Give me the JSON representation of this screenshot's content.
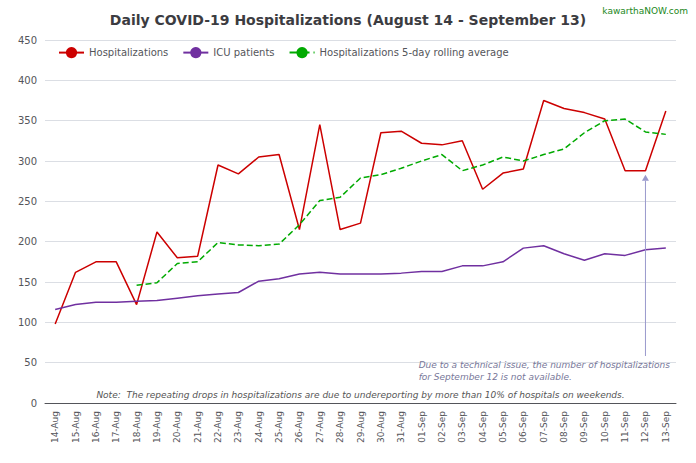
{
  "chart_data": {
    "type": "line",
    "title": "Daily COVID-19 Hospitalizations (August 14 - September 13)",
    "categories": [
      "14-Aug",
      "15-Aug",
      "16-Aug",
      "17-Aug",
      "18-Aug",
      "19-Aug",
      "20-Aug",
      "21-Aug",
      "22-Aug",
      "23-Aug",
      "24-Aug",
      "25-Aug",
      "26-Aug",
      "27-Aug",
      "28-Aug",
      "29-Aug",
      "30-Aug",
      "31-Aug",
      "01-Sep",
      "02-Sep",
      "03-Sep",
      "04-Sep",
      "05-Sep",
      "06-Sep",
      "07-Sep",
      "08-Sep",
      "09-Sep",
      "10-Sep",
      "11-Sep",
      "12-Sep",
      "13-Sep"
    ],
    "series": [
      {
        "name": "Hospitalizations",
        "color": "#cc0000",
        "line_style": "solid",
        "values": [
          98,
          162,
          175,
          175,
          122,
          212,
          180,
          182,
          295,
          284,
          305,
          308,
          215,
          345,
          215,
          223,
          335,
          337,
          322,
          320,
          325,
          265,
          285,
          290,
          375,
          365,
          360,
          352,
          288,
          288,
          362
        ]
      },
      {
        "name": "ICU patients",
        "color": "#7030a0",
        "line_style": "solid",
        "values": [
          116,
          122,
          125,
          125,
          126,
          127,
          130,
          133,
          135,
          137,
          151,
          154,
          160,
          162,
          160,
          160,
          160,
          161,
          163,
          163,
          170,
          170,
          175,
          192,
          195,
          185,
          177,
          185,
          183,
          190,
          192
        ]
      },
      {
        "name": "Hospitalizations 5-day rolling average",
        "color": "#00aa00",
        "line_style": "dashed",
        "values": [
          null,
          null,
          null,
          null,
          146,
          149,
          173,
          175,
          199,
          196,
          195,
          197,
          221,
          251,
          255,
          279,
          283,
          291,
          300,
          308,
          288,
          295,
          305,
          300,
          308,
          315,
          335,
          350,
          352,
          336,
          333
        ]
      }
    ],
    "ylim": [
      0,
      450
    ],
    "yticks": [
      0,
      50,
      100,
      150,
      200,
      250,
      300,
      350,
      400,
      450
    ],
    "grid": true,
    "legend": "upper left",
    "annotations": [
      {
        "text": "Note:  The repeating drops in hospitalizations are due to undereporting by more than 10% of hospitals on weekends."
      },
      {
        "text": "Due to a technical issue, the number of hospitalizations\nfor September 12 is not available.",
        "x": "12-Sep"
      },
      {
        "text": "kawarthaNOW.com"
      }
    ]
  }
}
